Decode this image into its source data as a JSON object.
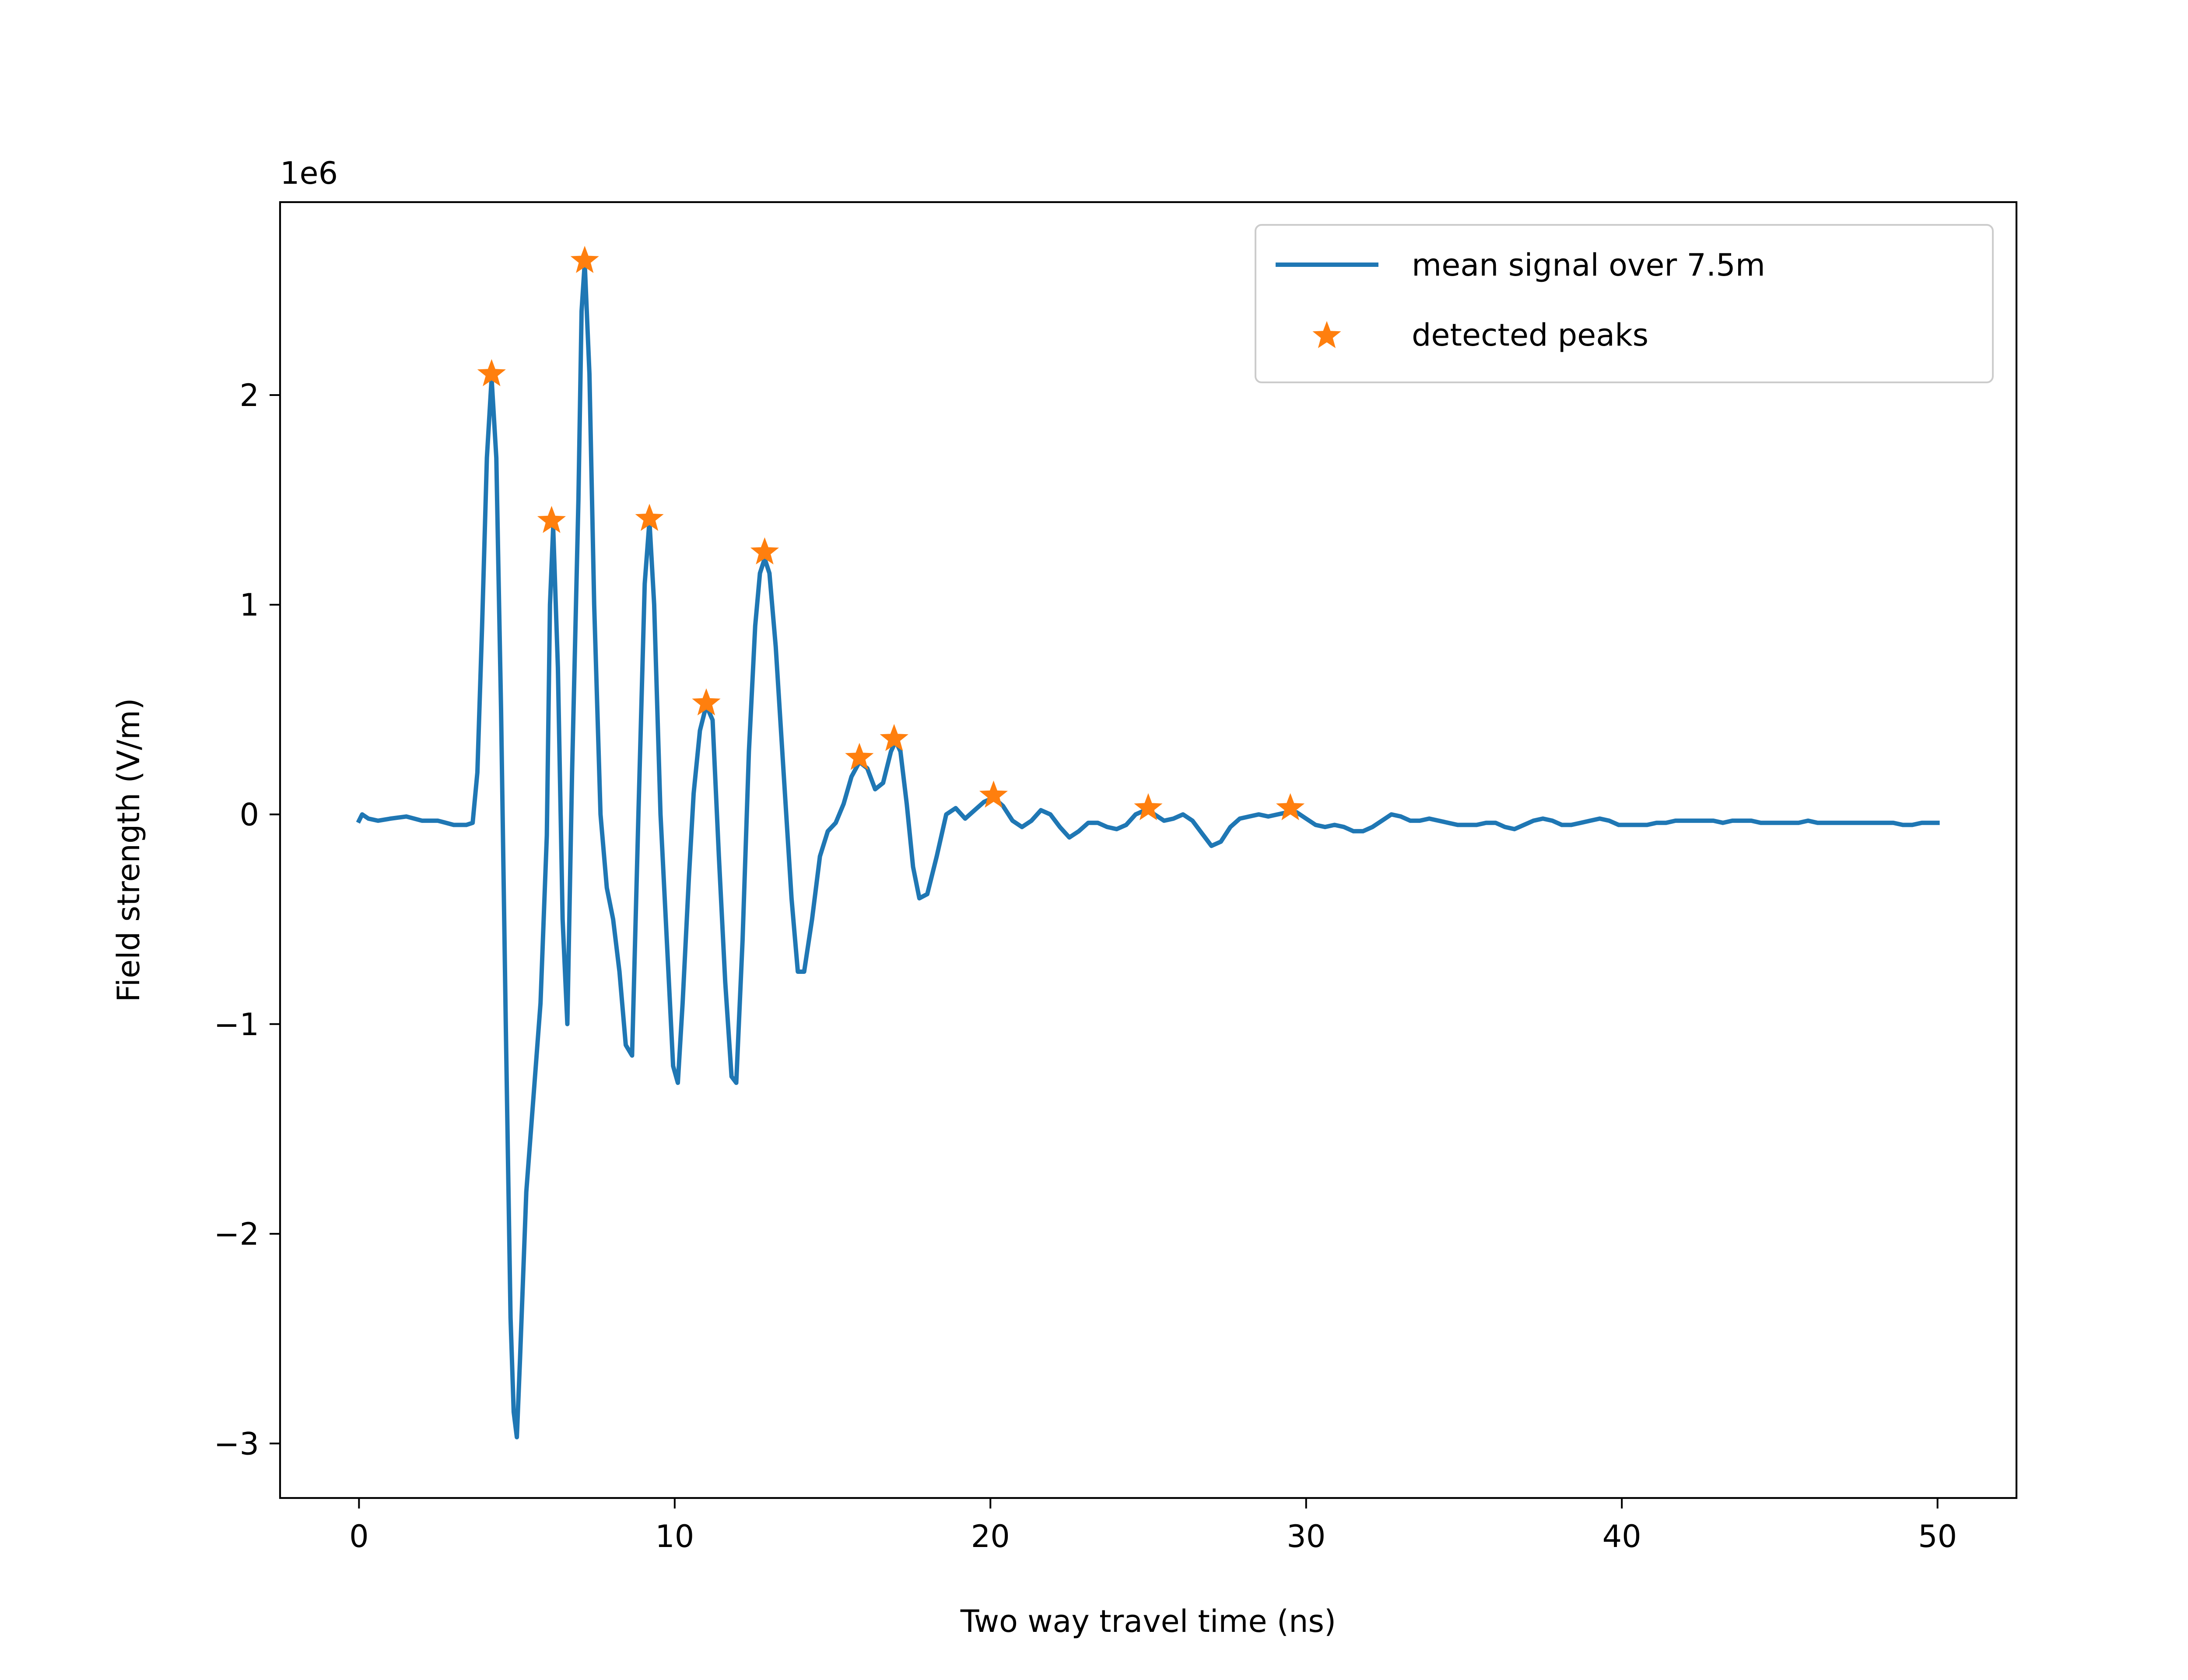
{
  "chart_data": {
    "type": "line",
    "title": "",
    "xlabel": "Two way travel time (ns)",
    "ylabel": "Field strength (V/m)",
    "y_offset_label": "1e6",
    "y_scale": 1000000,
    "xlim": [
      -2.5,
      52.5
    ],
    "ylim": [
      -3.26,
      2.92
    ],
    "x_ticks": [
      0,
      10,
      20,
      30,
      40,
      50
    ],
    "x_tick_labels": [
      "0",
      "10",
      "20",
      "30",
      "40",
      "50"
    ],
    "y_ticks": [
      -3,
      -2,
      -1,
      0,
      1,
      2
    ],
    "y_tick_labels": [
      "−3",
      "−2",
      "−1",
      "0",
      "1",
      "2"
    ],
    "grid": false,
    "legend": {
      "position": "top-right",
      "entries": [
        "mean signal over 7.5m",
        "detected peaks"
      ]
    },
    "series": [
      {
        "name": "mean signal over 7.5m",
        "kind": "line",
        "color": "#1f77b4",
        "points": [
          [
            0.0,
            -0.03
          ],
          [
            0.1,
            0.0
          ],
          [
            0.3,
            -0.02
          ],
          [
            0.6,
            -0.03
          ],
          [
            1.0,
            -0.02
          ],
          [
            1.5,
            -0.01
          ],
          [
            2.0,
            -0.03
          ],
          [
            2.5,
            -0.03
          ],
          [
            3.0,
            -0.05
          ],
          [
            3.4,
            -0.05
          ],
          [
            3.6,
            -0.04
          ],
          [
            3.75,
            0.2
          ],
          [
            3.9,
            0.9
          ],
          [
            4.05,
            1.7
          ],
          [
            4.2,
            2.08
          ],
          [
            4.35,
            1.7
          ],
          [
            4.5,
            0.5
          ],
          [
            4.65,
            -1.0
          ],
          [
            4.8,
            -2.4
          ],
          [
            4.9,
            -2.85
          ],
          [
            5.0,
            -2.97
          ],
          [
            5.1,
            -2.6
          ],
          [
            5.3,
            -1.8
          ],
          [
            5.55,
            -1.3
          ],
          [
            5.75,
            -0.9
          ],
          [
            5.95,
            -0.1
          ],
          [
            6.05,
            1.0
          ],
          [
            6.15,
            1.37
          ],
          [
            6.3,
            0.7
          ],
          [
            6.45,
            -0.5
          ],
          [
            6.6,
            -1.0
          ],
          [
            6.75,
            0.2
          ],
          [
            6.95,
            1.5
          ],
          [
            7.05,
            2.4
          ],
          [
            7.15,
            2.63
          ],
          [
            7.3,
            2.1
          ],
          [
            7.45,
            1.0
          ],
          [
            7.65,
            0.0
          ],
          [
            7.85,
            -0.35
          ],
          [
            8.05,
            -0.5
          ],
          [
            8.25,
            -0.75
          ],
          [
            8.45,
            -1.1
          ],
          [
            8.65,
            -1.15
          ],
          [
            8.85,
            0.0
          ],
          [
            9.05,
            1.1
          ],
          [
            9.2,
            1.4
          ],
          [
            9.35,
            1.0
          ],
          [
            9.55,
            0.0
          ],
          [
            9.75,
            -0.6
          ],
          [
            9.95,
            -1.2
          ],
          [
            10.1,
            -1.28
          ],
          [
            10.25,
            -0.9
          ],
          [
            10.45,
            -0.3
          ],
          [
            10.6,
            0.1
          ],
          [
            10.8,
            0.4
          ],
          [
            11.0,
            0.52
          ],
          [
            11.2,
            0.45
          ],
          [
            11.4,
            -0.2
          ],
          [
            11.6,
            -0.8
          ],
          [
            11.8,
            -1.25
          ],
          [
            11.95,
            -1.28
          ],
          [
            12.15,
            -0.6
          ],
          [
            12.35,
            0.3
          ],
          [
            12.55,
            0.9
          ],
          [
            12.7,
            1.15
          ],
          [
            12.85,
            1.22
          ],
          [
            13.0,
            1.15
          ],
          [
            13.2,
            0.8
          ],
          [
            13.45,
            0.2
          ],
          [
            13.7,
            -0.4
          ],
          [
            13.9,
            -0.75
          ],
          [
            14.1,
            -0.75
          ],
          [
            14.35,
            -0.5
          ],
          [
            14.6,
            -0.2
          ],
          [
            14.85,
            -0.08
          ],
          [
            15.1,
            -0.04
          ],
          [
            15.35,
            0.05
          ],
          [
            15.6,
            0.18
          ],
          [
            15.85,
            0.25
          ],
          [
            16.1,
            0.22
          ],
          [
            16.35,
            0.12
          ],
          [
            16.6,
            0.15
          ],
          [
            16.85,
            0.3
          ],
          [
            17.0,
            0.35
          ],
          [
            17.15,
            0.3
          ],
          [
            17.35,
            0.05
          ],
          [
            17.55,
            -0.25
          ],
          [
            17.75,
            -0.4
          ],
          [
            18.0,
            -0.38
          ],
          [
            18.3,
            -0.2
          ],
          [
            18.6,
            0.0
          ],
          [
            18.9,
            0.03
          ],
          [
            19.2,
            -0.02
          ],
          [
            19.5,
            0.02
          ],
          [
            19.8,
            0.06
          ],
          [
            20.1,
            0.08
          ],
          [
            20.4,
            0.04
          ],
          [
            20.7,
            -0.03
          ],
          [
            21.0,
            -0.06
          ],
          [
            21.3,
            -0.03
          ],
          [
            21.6,
            0.02
          ],
          [
            21.9,
            0.0
          ],
          [
            22.2,
            -0.06
          ],
          [
            22.5,
            -0.11
          ],
          [
            22.8,
            -0.08
          ],
          [
            23.1,
            -0.04
          ],
          [
            23.4,
            -0.04
          ],
          [
            23.7,
            -0.06
          ],
          [
            24.0,
            -0.07
          ],
          [
            24.3,
            -0.05
          ],
          [
            24.6,
            0.0
          ],
          [
            24.9,
            0.02
          ],
          [
            25.2,
            0.0
          ],
          [
            25.5,
            -0.03
          ],
          [
            25.8,
            -0.02
          ],
          [
            26.1,
            0.0
          ],
          [
            26.4,
            -0.03
          ],
          [
            26.7,
            -0.09
          ],
          [
            27.0,
            -0.15
          ],
          [
            27.3,
            -0.13
          ],
          [
            27.6,
            -0.06
          ],
          [
            27.9,
            -0.02
          ],
          [
            28.2,
            -0.01
          ],
          [
            28.5,
            0.0
          ],
          [
            28.8,
            -0.01
          ],
          [
            29.1,
            0.0
          ],
          [
            29.4,
            0.01
          ],
          [
            29.7,
            0.01
          ],
          [
            30.0,
            -0.02
          ],
          [
            30.3,
            -0.05
          ],
          [
            30.6,
            -0.06
          ],
          [
            30.9,
            -0.05
          ],
          [
            31.2,
            -0.06
          ],
          [
            31.5,
            -0.08
          ],
          [
            31.8,
            -0.08
          ],
          [
            32.1,
            -0.06
          ],
          [
            32.4,
            -0.03
          ],
          [
            32.7,
            0.0
          ],
          [
            33.0,
            -0.01
          ],
          [
            33.3,
            -0.03
          ],
          [
            33.6,
            -0.03
          ],
          [
            33.9,
            -0.02
          ],
          [
            34.2,
            -0.03
          ],
          [
            34.5,
            -0.04
          ],
          [
            34.8,
            -0.05
          ],
          [
            35.1,
            -0.05
          ],
          [
            35.4,
            -0.05
          ],
          [
            35.7,
            -0.04
          ],
          [
            36.0,
            -0.04
          ],
          [
            36.3,
            -0.06
          ],
          [
            36.6,
            -0.07
          ],
          [
            36.9,
            -0.05
          ],
          [
            37.2,
            -0.03
          ],
          [
            37.5,
            -0.02
          ],
          [
            37.8,
            -0.03
          ],
          [
            38.1,
            -0.05
          ],
          [
            38.4,
            -0.05
          ],
          [
            38.7,
            -0.04
          ],
          [
            39.0,
            -0.03
          ],
          [
            39.3,
            -0.02
          ],
          [
            39.6,
            -0.03
          ],
          [
            39.9,
            -0.05
          ],
          [
            40.2,
            -0.05
          ],
          [
            40.5,
            -0.05
          ],
          [
            40.8,
            -0.05
          ],
          [
            41.1,
            -0.04
          ],
          [
            41.4,
            -0.04
          ],
          [
            41.7,
            -0.03
          ],
          [
            42.0,
            -0.03
          ],
          [
            42.3,
            -0.03
          ],
          [
            42.6,
            -0.03
          ],
          [
            42.9,
            -0.03
          ],
          [
            43.2,
            -0.04
          ],
          [
            43.5,
            -0.03
          ],
          [
            43.8,
            -0.03
          ],
          [
            44.1,
            -0.03
          ],
          [
            44.4,
            -0.04
          ],
          [
            44.7,
            -0.04
          ],
          [
            45.0,
            -0.04
          ],
          [
            45.3,
            -0.04
          ],
          [
            45.6,
            -0.04
          ],
          [
            45.9,
            -0.03
          ],
          [
            46.2,
            -0.04
          ],
          [
            46.5,
            -0.04
          ],
          [
            46.8,
            -0.04
          ],
          [
            47.1,
            -0.04
          ],
          [
            47.4,
            -0.04
          ],
          [
            47.7,
            -0.04
          ],
          [
            48.0,
            -0.04
          ],
          [
            48.3,
            -0.04
          ],
          [
            48.6,
            -0.04
          ],
          [
            48.9,
            -0.05
          ],
          [
            49.2,
            -0.05
          ],
          [
            49.5,
            -0.04
          ],
          [
            50.0,
            -0.04
          ]
        ]
      },
      {
        "name": "detected peaks",
        "kind": "marker",
        "marker": "star",
        "color": "#ff7f0e",
        "points": [
          [
            4.2,
            2.1
          ],
          [
            6.1,
            1.4
          ],
          [
            7.15,
            2.64
          ],
          [
            9.2,
            1.41
          ],
          [
            11.0,
            0.53
          ],
          [
            12.85,
            1.25
          ],
          [
            15.85,
            0.27
          ],
          [
            16.95,
            0.36
          ],
          [
            20.1,
            0.09
          ],
          [
            25.0,
            0.03
          ],
          [
            29.5,
            0.03
          ]
        ]
      }
    ]
  }
}
